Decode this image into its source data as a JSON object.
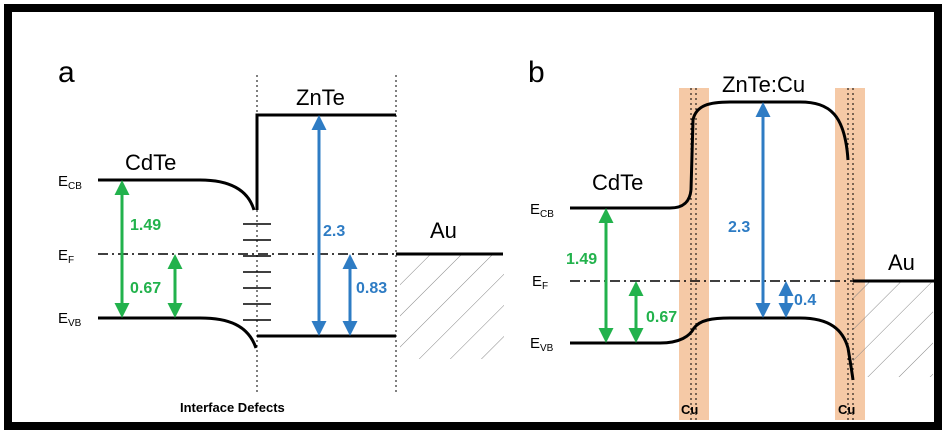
{
  "panel_a": {
    "label": "a",
    "material_left": "CdTe",
    "material_mid": "ZnTe",
    "metal": "Au",
    "level_cb": {
      "main": "E",
      "sub": "CB"
    },
    "level_f": {
      "main": "E",
      "sub": "F"
    },
    "level_vb": {
      "main": "E",
      "sub": "VB"
    },
    "val_gap": "1.49",
    "val_cdte_vb": "0.67",
    "val_znte_gap": "2.3",
    "val_znte_vb": "0.83",
    "interface_label": "Interface Defects"
  },
  "panel_b": {
    "label": "b",
    "material_left": "CdTe",
    "material_mid": "ZnTe:Cu",
    "metal": "Au",
    "level_cb": {
      "main": "E",
      "sub": "CB"
    },
    "level_f": {
      "main": "E",
      "sub": "F"
    },
    "level_vb": {
      "main": "E",
      "sub": "VB"
    },
    "val_gap": "1.49",
    "val_cdte_vb": "0.67",
    "val_znte_gap": "2.3",
    "val_znte_vb": "0.4",
    "cu_label_left": "Cu",
    "cu_label_right": "Cu"
  },
  "colors": {
    "green": "#22b24c",
    "blue": "#2e7cc4",
    "copper": "#f5c9a6",
    "frame": "#000000"
  }
}
